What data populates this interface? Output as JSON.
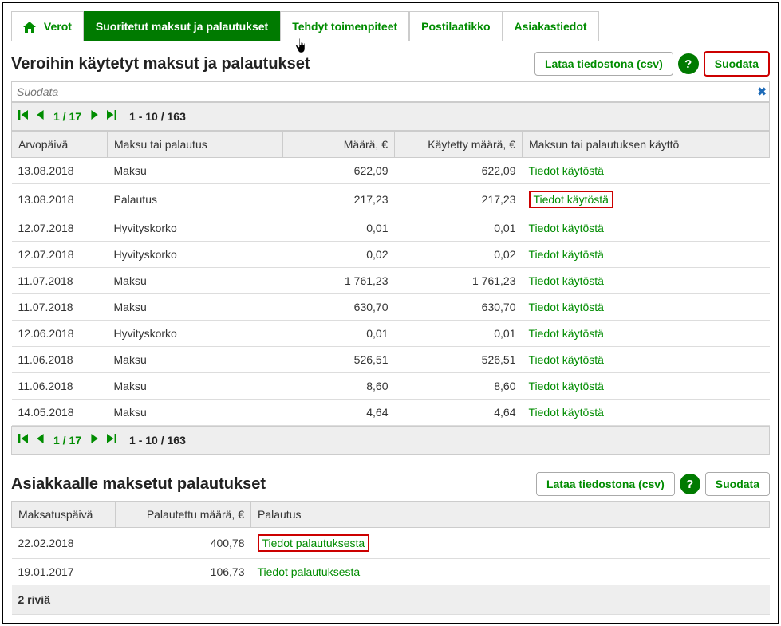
{
  "tabs": [
    {
      "label": "Verot",
      "hasHome": true
    },
    {
      "label": "Suoritetut maksut ja palautukset",
      "active": true
    },
    {
      "label": "Tehdyt toimenpiteet",
      "hasCursor": true
    },
    {
      "label": "Postilaatikko"
    },
    {
      "label": "Asiakastiedot"
    }
  ],
  "section1": {
    "title": "Veroihin käytetyt maksut ja palautukset",
    "csvLabel": "Lataa tiedostona (csv)",
    "filterLabel": "Suodata",
    "filterPlaceholder": "Suodata",
    "pager": {
      "page": "1 / 17",
      "range": "1 - 10 / 163"
    },
    "columns": [
      "Arvopäivä",
      "Maksu tai palautus",
      "Määrä, €",
      "Käytetty määrä, €",
      "Maksun tai palautuksen käyttö"
    ],
    "rows": [
      {
        "date": "13.08.2018",
        "type": "Maksu",
        "amount": "622,09",
        "used": "622,09",
        "link": "Tiedot käytöstä"
      },
      {
        "date": "13.08.2018",
        "type": "Palautus",
        "amount": "217,23",
        "used": "217,23",
        "link": "Tiedot käytöstä",
        "highlight": true
      },
      {
        "date": "12.07.2018",
        "type": "Hyvityskorko",
        "amount": "0,01",
        "used": "0,01",
        "link": "Tiedot käytöstä"
      },
      {
        "date": "12.07.2018",
        "type": "Hyvityskorko",
        "amount": "0,02",
        "used": "0,02",
        "link": "Tiedot käytöstä"
      },
      {
        "date": "11.07.2018",
        "type": "Maksu",
        "amount": "1 761,23",
        "used": "1 761,23",
        "link": "Tiedot käytöstä"
      },
      {
        "date": "11.07.2018",
        "type": "Maksu",
        "amount": "630,70",
        "used": "630,70",
        "link": "Tiedot käytöstä"
      },
      {
        "date": "12.06.2018",
        "type": "Hyvityskorko",
        "amount": "0,01",
        "used": "0,01",
        "link": "Tiedot käytöstä"
      },
      {
        "date": "11.06.2018",
        "type": "Maksu",
        "amount": "526,51",
        "used": "526,51",
        "link": "Tiedot käytöstä"
      },
      {
        "date": "11.06.2018",
        "type": "Maksu",
        "amount": "8,60",
        "used": "8,60",
        "link": "Tiedot käytöstä"
      },
      {
        "date": "14.05.2018",
        "type": "Maksu",
        "amount": "4,64",
        "used": "4,64",
        "link": "Tiedot käytöstä"
      }
    ]
  },
  "section2": {
    "title": "Asiakkaalle maksetut palautukset",
    "csvLabel": "Lataa tiedostona (csv)",
    "filterLabel": "Suodata",
    "columns": [
      "Maksatuspäivä",
      "Palautettu määrä, €",
      "Palautus"
    ],
    "rows": [
      {
        "date": "22.02.2018",
        "amount": "400,78",
        "link": "Tiedot palautuksesta",
        "highlight": true
      },
      {
        "date": "19.01.2017",
        "amount": "106,73",
        "link": "Tiedot palautuksesta"
      }
    ],
    "footer": "2 riviä"
  },
  "helpLabel": "?"
}
